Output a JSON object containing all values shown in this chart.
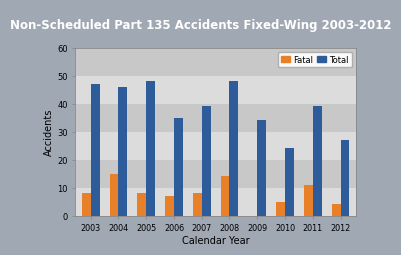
{
  "title": "Non-Scheduled Part 135 Accidents Fixed-Wing 2003-2012",
  "xlabel": "Calendar Year",
  "ylabel": "Accidents",
  "years": [
    2003,
    2004,
    2005,
    2006,
    2007,
    2008,
    2009,
    2010,
    2011,
    2012
  ],
  "fatal": [
    8,
    15,
    8,
    7,
    8,
    14,
    0,
    5,
    11,
    4
  ],
  "total": [
    47,
    46,
    48,
    35,
    39,
    48,
    34,
    24,
    39,
    27
  ],
  "fatal_color": "#E8802A",
  "total_color": "#2E5C9A",
  "ylim": [
    0,
    60
  ],
  "yticks": [
    0,
    10,
    20,
    30,
    40,
    50,
    60
  ],
  "bg_outer": "#A0A8B4",
  "bg_inner_light": "#DCDCDC",
  "bg_inner_dark": "#C8C8C8",
  "title_bg": "#606060",
  "title_color": "#FFFFFF",
  "title_fontsize": 8.5,
  "bar_width": 0.32,
  "legend_labels": [
    "Fatal",
    "Total"
  ]
}
